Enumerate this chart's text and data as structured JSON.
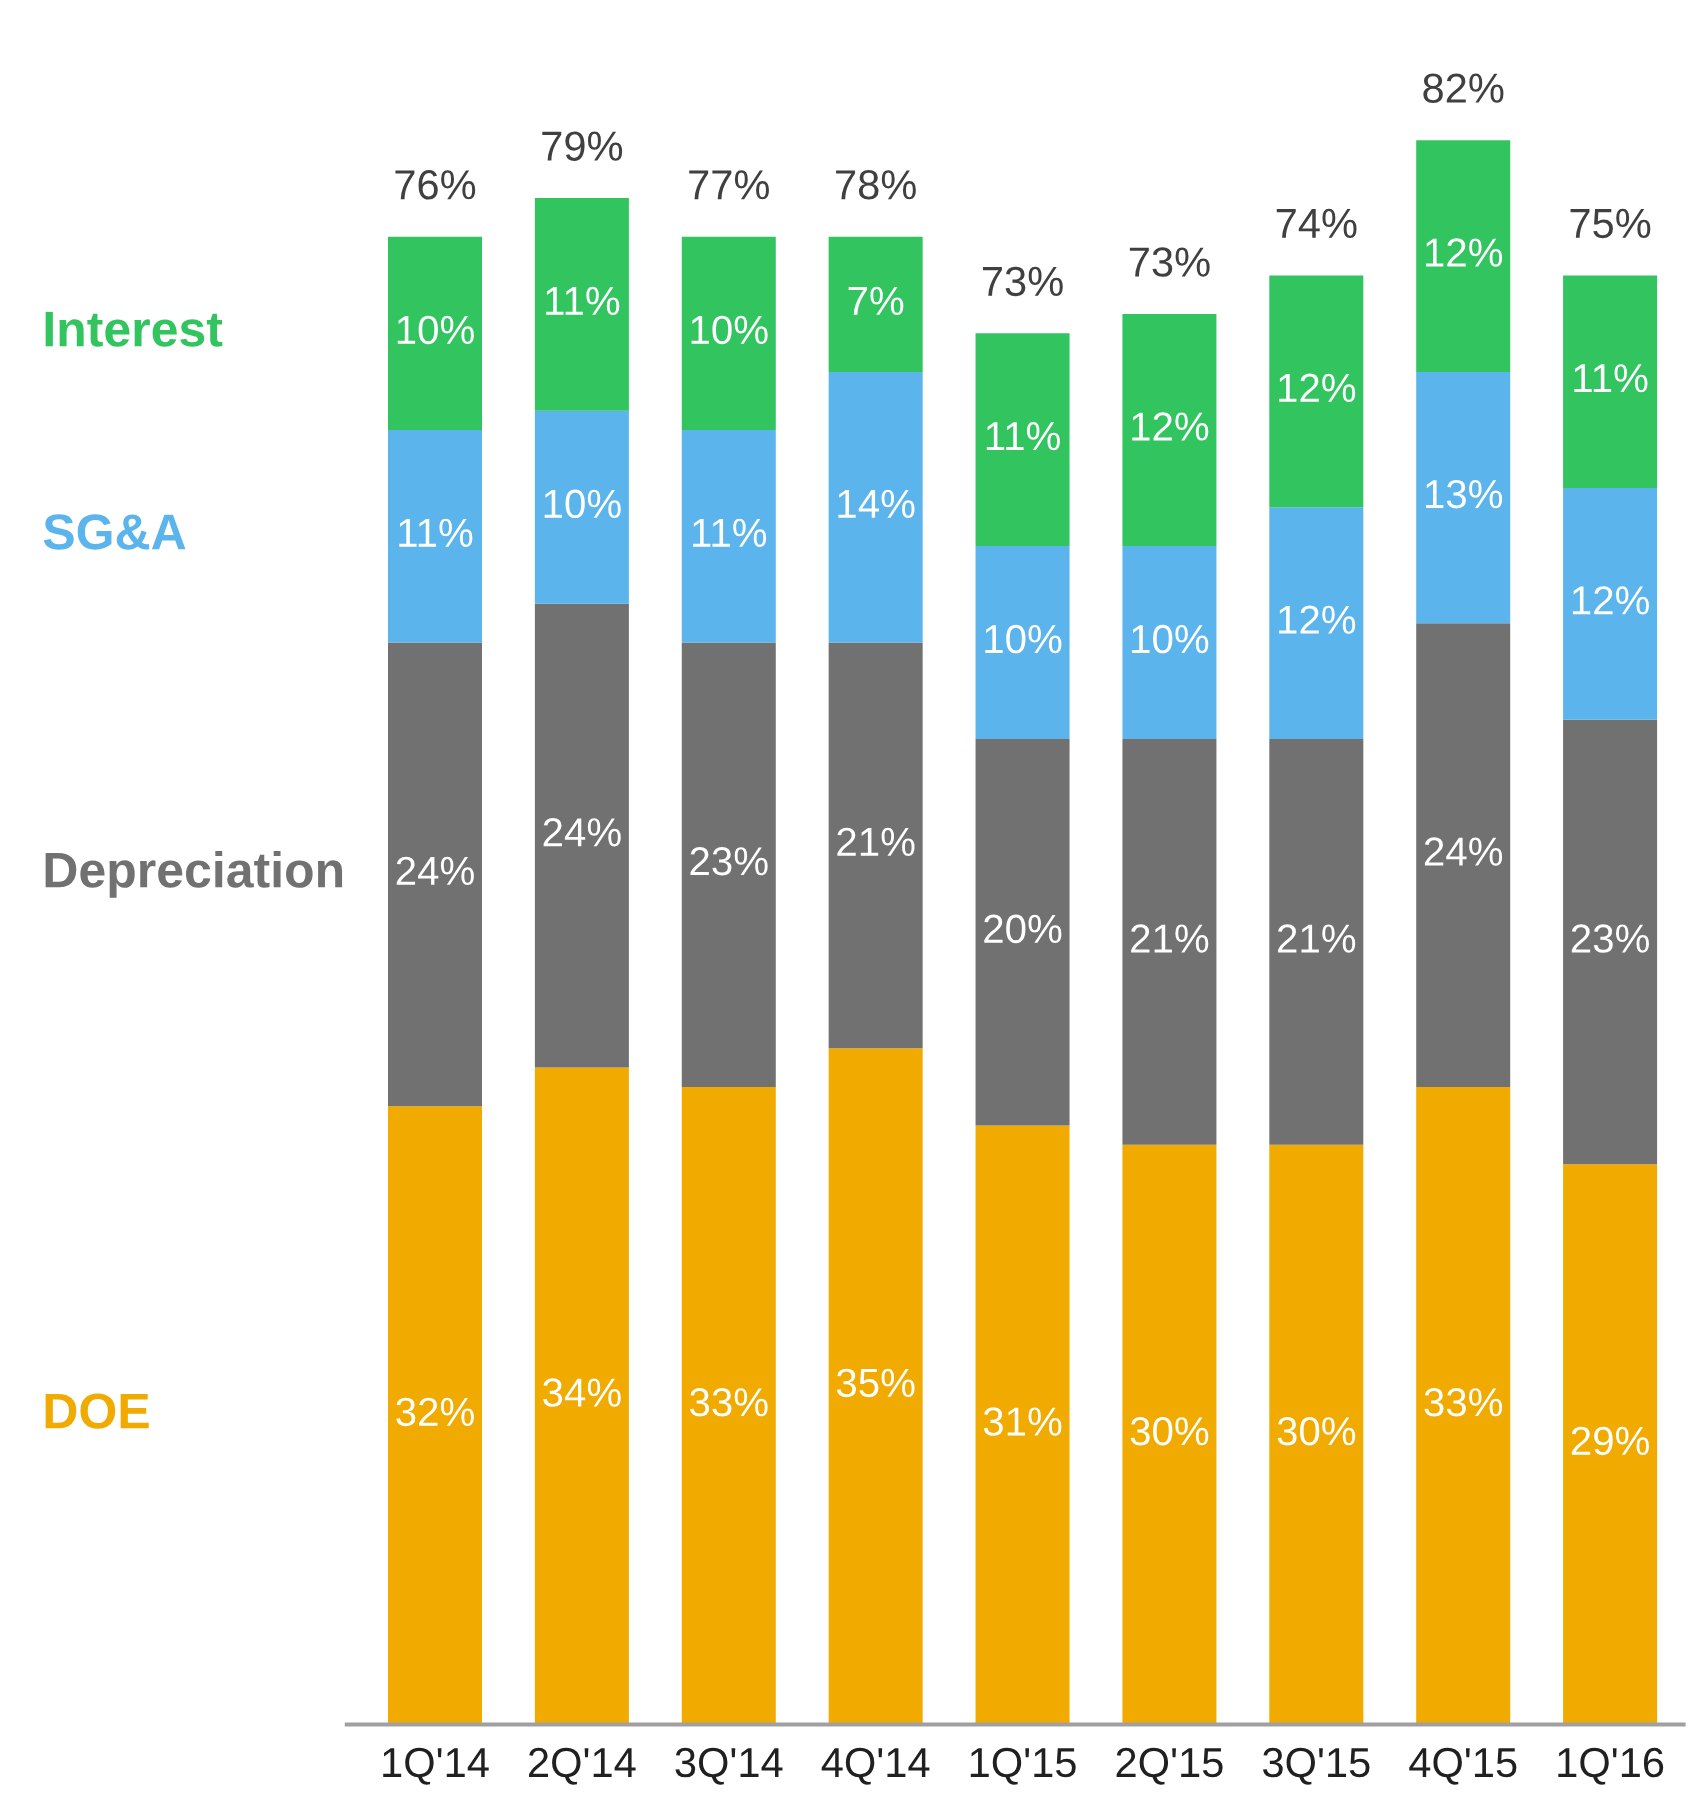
{
  "chart_data": {
    "type": "bar",
    "stacked": true,
    "categories": [
      "1Q'14",
      "2Q'14",
      "3Q'14",
      "4Q'14",
      "1Q'15",
      "2Q'15",
      "3Q'15",
      "4Q'15",
      "1Q'16"
    ],
    "series": [
      {
        "name": "DOE",
        "color": "#f0aa00",
        "values": [
          32,
          34,
          33,
          35,
          31,
          30,
          30,
          33,
          29
        ],
        "value_labels": [
          "32%",
          "34%",
          "33%",
          "35%",
          "31%",
          "30%",
          "30%",
          "33%",
          "29%"
        ]
      },
      {
        "name": "Depreciation",
        "color": "#717171",
        "values": [
          24,
          24,
          23,
          21,
          20,
          21,
          21,
          24,
          23
        ],
        "value_labels": [
          "24%",
          "24%",
          "23%",
          "21%",
          "20%",
          "21%",
          "21%",
          "24%",
          "23%"
        ]
      },
      {
        "name": "SG&A",
        "color": "#5bb5ec",
        "values": [
          11,
          10,
          11,
          14,
          10,
          10,
          12,
          13,
          12
        ],
        "value_labels": [
          "11%",
          "10%",
          "11%",
          "14%",
          "10%",
          "10%",
          "12%",
          "13%",
          "12%"
        ]
      },
      {
        "name": "Interest",
        "color": "#31c45f",
        "values": [
          10,
          11,
          10,
          7,
          11,
          12,
          12,
          12,
          11
        ],
        "value_labels": [
          "10%",
          "11%",
          "10%",
          "7%",
          "11%",
          "12%",
          "12%",
          "12%",
          "11%"
        ]
      }
    ],
    "totals": [
      "76%",
      "79%",
      "77%",
      "78%",
      "73%",
      "73%",
      "74%",
      "82%",
      "75%"
    ],
    "legend": false,
    "grid": false,
    "tick_labels": "x"
  }
}
